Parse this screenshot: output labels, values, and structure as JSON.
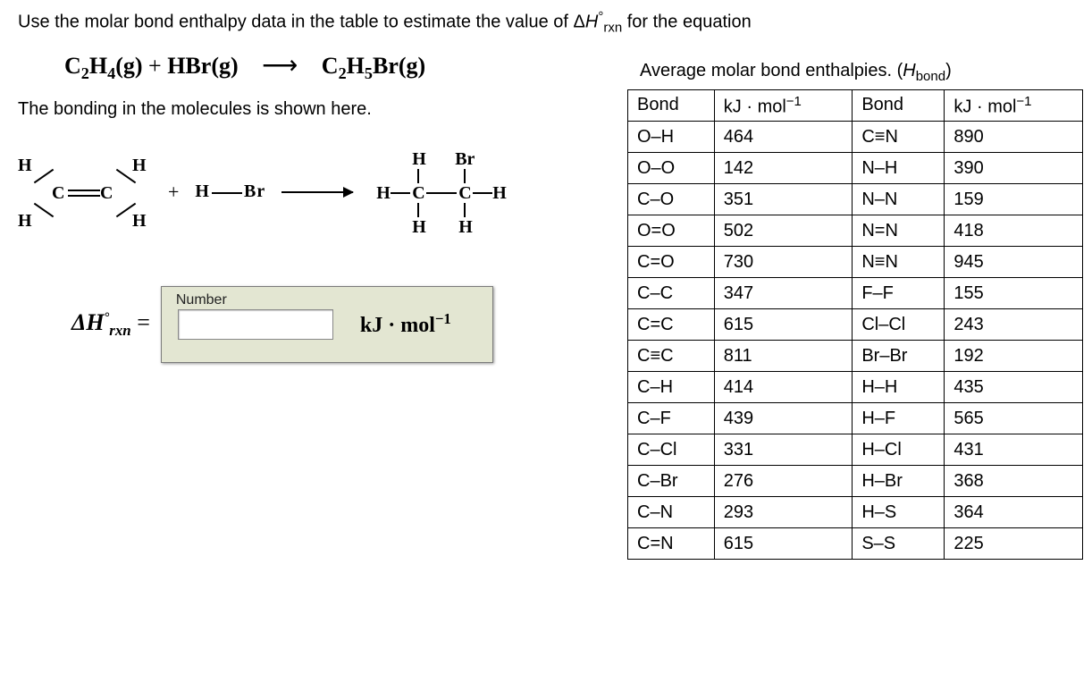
{
  "question_text": "Use the molar bond enthalpy data in the table to estimate the value of Δ",
  "question_text_2": " for the equation",
  "dh_symbol_sub": "rxn",
  "dh_symbol_sup": "°",
  "equation": {
    "r1": "C",
    "r1s": "2",
    "r2": "H",
    "r2s": "4",
    "r1_phase": "(g)",
    "plus": "+",
    "r3": "HBr",
    "r3_phase": "(g)",
    "p1": "C",
    "p1s": "2",
    "p2": "H",
    "p2s": "5",
    "p3": "Br",
    "p_phase": "(g)"
  },
  "bonding_text": "The bonding in the molecules is shown here.",
  "answer": {
    "number_label": "Number",
    "value": "",
    "unit_prefix": "kJ · mol",
    "unit_exp": "−1"
  },
  "table": {
    "caption_a": "Average molar bond enthalpies. (",
    "caption_b": "H",
    "caption_c": "bond",
    "caption_d": ")",
    "headers": {
      "bond": "Bond",
      "val": "kJ · mol"
    },
    "rows": [
      {
        "b1": "O–H",
        "v1": "464",
        "b2": "C≡N",
        "v2": "890"
      },
      {
        "b1": "O–O",
        "v1": "142",
        "b2": "N–H",
        "v2": "390"
      },
      {
        "b1": "C–O",
        "v1": "351",
        "b2": "N–N",
        "v2": "159"
      },
      {
        "b1": "O=O",
        "v1": "502",
        "b2": "N=N",
        "v2": "418"
      },
      {
        "b1": "C=O",
        "v1": "730",
        "b2": "N≡N",
        "v2": "945"
      },
      {
        "b1": "C–C",
        "v1": "347",
        "b2": "F–F",
        "v2": "155"
      },
      {
        "b1": "C=C",
        "v1": "615",
        "b2": "Cl–Cl",
        "v2": "243"
      },
      {
        "b1": "C≡C",
        "v1": "811",
        "b2": "Br–Br",
        "v2": "192"
      },
      {
        "b1": "C–H",
        "v1": "414",
        "b2": "H–H",
        "v2": "435"
      },
      {
        "b1": "C–F",
        "v1": "439",
        "b2": "H–F",
        "v2": "565"
      },
      {
        "b1": "C–Cl",
        "v1": "331",
        "b2": "H–Cl",
        "v2": "431"
      },
      {
        "b1": "C–Br",
        "v1": "276",
        "b2": "H–Br",
        "v2": "368"
      },
      {
        "b1": "C–N",
        "v1": "293",
        "b2": "H–S",
        "v2": "364"
      },
      {
        "b1": "C=N",
        "v1": "615",
        "b2": "S–S",
        "v2": "225"
      }
    ]
  },
  "atoms": {
    "H": "H",
    "C": "C",
    "Br": "Br",
    "plus": "+",
    "eq": "="
  }
}
